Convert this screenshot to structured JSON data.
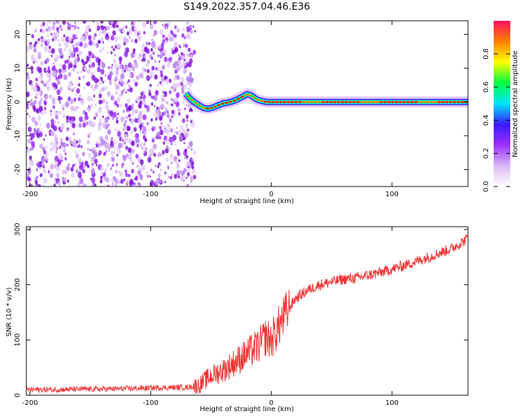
{
  "title": "S149.2022.357.04.46.E36",
  "colors": {
    "snr_line": "#f03030",
    "scatter_noise": "#8a2be2",
    "track_core": "#ff2020",
    "colormap": [
      "#ffffff",
      "#d9b8f5",
      "#9b30ff",
      "#3a1bff",
      "#00e5ff",
      "#00ff40",
      "#ffff00",
      "#ff8000",
      "#ff1060"
    ]
  },
  "chart_data": [
    {
      "type": "heatmap",
      "xlabel": "Height of straight line (km)",
      "ylabel": "Frequency (Hz)",
      "xlim": [
        -203,
        163
      ],
      "ylim": [
        -25,
        24
      ],
      "x_ticks": [
        -200,
        -100,
        0,
        100
      ],
      "y_ticks": [
        -20,
        -10,
        0,
        10,
        20
      ],
      "colorbar": {
        "label": "Normalized spectral amplitude",
        "range": [
          0,
          1
        ],
        "ticks": [
          0.0,
          0.2,
          0.4,
          0.6,
          0.8
        ]
      },
      "noise_region_x": [
        -203,
        -67
      ],
      "signal_track": {
        "x": [
          -71,
          -68,
          -64,
          -60,
          -56,
          -52,
          -48,
          -44,
          -40,
          -36,
          -32,
          -28,
          -24,
          -20,
          -17,
          -14,
          -11,
          -8,
          -4,
          0,
          10,
          30,
          60,
          100,
          140,
          163
        ],
        "y": [
          2.5,
          1.2,
          0.0,
          -1.0,
          -1.8,
          -2.0,
          -1.6,
          -1.0,
          -0.4,
          -0.2,
          0.2,
          0.8,
          1.5,
          2.3,
          2.0,
          1.2,
          0.6,
          0.3,
          0.0,
          0.0,
          0.0,
          0.0,
          0.0,
          0.0,
          0.0,
          0.0
        ]
      },
      "grid": false
    },
    {
      "type": "line",
      "xlabel": "Height of straight line (km)",
      "ylabel": "SNR (10 * v/v)",
      "xlim": [
        -203,
        163
      ],
      "ylim": [
        0,
        305
      ],
      "x_ticks": [
        -200,
        -100,
        0,
        100
      ],
      "y_ticks": [
        0,
        100,
        200,
        300
      ],
      "series": [
        {
          "x": [
            -203,
            -180,
            -160,
            -140,
            -120,
            -100,
            -80,
            -70,
            -60,
            -50,
            -40,
            -30,
            -20,
            -10,
            -5,
            0,
            10,
            20,
            30,
            40,
            50,
            60,
            70,
            80,
            90,
            100,
            110,
            120,
            130,
            140,
            150,
            160,
            163
          ],
          "values": [
            10,
            10,
            11,
            11,
            12,
            13,
            14,
            14,
            18,
            35,
            45,
            60,
            75,
            90,
            105,
            100,
            140,
            175,
            190,
            200,
            205,
            210,
            212,
            217,
            222,
            228,
            235,
            242,
            250,
            258,
            266,
            280,
            285
          ]
        }
      ],
      "grid": false
    }
  ]
}
